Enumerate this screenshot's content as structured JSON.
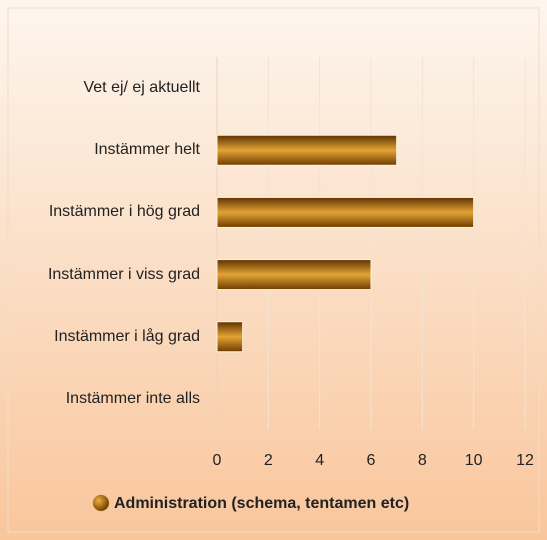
{
  "chart_data": {
    "type": "hbar",
    "categories": [
      "Vet ej/ ej aktuellt",
      "Instämmer helt",
      "Instämmer i hög grad",
      "Instämmer i viss grad",
      "Instämmer i låg grad",
      "Instämmer inte alls"
    ],
    "series": [
      {
        "name": "Administration (schema, tentamen etc)",
        "color": "#b8781e",
        "values": [
          0,
          7,
          10,
          6,
          1,
          0
        ]
      }
    ],
    "xlim": [
      0,
      12
    ],
    "xticks": [
      0,
      2,
      4,
      6,
      8,
      10,
      12
    ],
    "grid": true,
    "legend": "bottom"
  }
}
